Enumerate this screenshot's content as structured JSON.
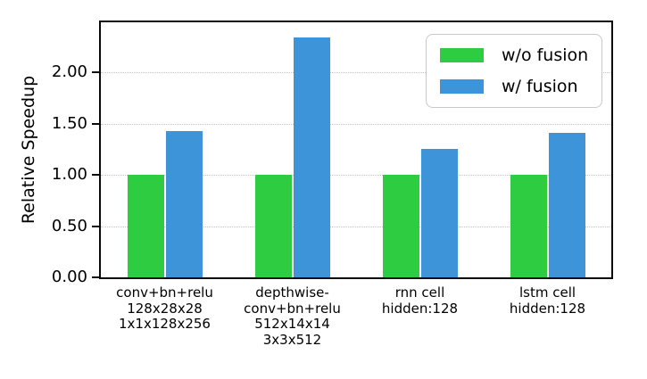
{
  "chart_data": {
    "type": "bar",
    "title": "",
    "xlabel": "",
    "ylabel": "Relative Speedup",
    "ylim": [
      0,
      2.49
    ],
    "yticks": [
      0.0,
      0.5,
      1.0,
      1.5,
      2.0
    ],
    "ytick_labels": [
      "0.00",
      "0.50",
      "1.00",
      "1.50",
      "2.00"
    ],
    "grid": "horizontal dotted gridlines at y ticks",
    "legend_position": "upper right inside plot",
    "categories": [
      [
        "conv+bn+relu",
        "128x28x28",
        "1x1x128x256"
      ],
      [
        "depthwise-",
        "conv+bn+relu",
        "512x14x14",
        "3x3x512"
      ],
      [
        "rnn cell",
        "hidden:128"
      ],
      [
        "lstm cell",
        "hidden:128"
      ]
    ],
    "series": [
      {
        "name": "w/o fusion",
        "color": "#2ecc40",
        "values": [
          1.0,
          1.0,
          1.0,
          1.0
        ]
      },
      {
        "name": "w/ fusion",
        "color": "#3e94d8",
        "values": [
          1.43,
          2.34,
          1.25,
          1.41
        ]
      }
    ],
    "colors": {
      "axis": "#0a0a0a",
      "gridline": "#c3c3c3",
      "legend_border": "#c9c9c9",
      "background": "#ffffff"
    }
  }
}
